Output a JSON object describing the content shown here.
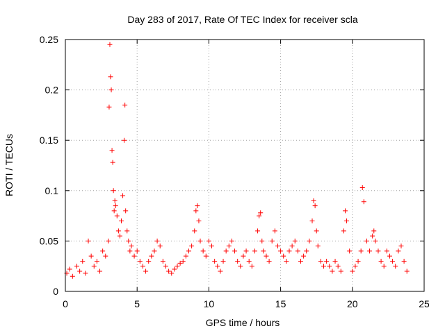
{
  "chart_data": {
    "type": "scatter",
    "title": "Day 283 of 2017, Rate Of TEC Index for receiver scla",
    "xlabel": "GPS time / hours",
    "ylabel": "ROTI / TECUs",
    "xlim": [
      0,
      25
    ],
    "ylim": [
      0,
      0.25
    ],
    "xticks": [
      0,
      5,
      10,
      15,
      20,
      25
    ],
    "xtick_labels": [
      "0",
      "5",
      "10",
      "15",
      "20",
      "25"
    ],
    "yticks": [
      0,
      0.05,
      0.1,
      0.15,
      0.2,
      0.25
    ],
    "ytick_labels": [
      "0",
      "0.05",
      "0.1",
      "0.15",
      "0.2",
      "0.25"
    ],
    "grid": true,
    "marker": "+",
    "color": "#ff0000",
    "series": [
      {
        "name": "ROTI",
        "x": [
          0.1,
          0.3,
          0.5,
          0.8,
          1.0,
          1.2,
          1.4,
          1.6,
          1.8,
          2.0,
          2.2,
          2.4,
          2.6,
          2.8,
          3.0,
          3.05,
          3.1,
          3.15,
          3.2,
          3.25,
          3.3,
          3.35,
          3.4,
          3.45,
          3.5,
          3.6,
          3.7,
          3.8,
          3.9,
          4.0,
          4.1,
          4.15,
          4.2,
          4.3,
          4.4,
          4.5,
          4.6,
          4.8,
          5.0,
          5.2,
          5.4,
          5.6,
          5.8,
          6.0,
          6.2,
          6.4,
          6.6,
          6.8,
          7.0,
          7.2,
          7.4,
          7.6,
          7.8,
          8.0,
          8.2,
          8.4,
          8.6,
          8.8,
          9.0,
          9.1,
          9.2,
          9.3,
          9.4,
          9.6,
          9.8,
          10.0,
          10.2,
          10.4,
          10.6,
          10.8,
          11.0,
          11.2,
          11.4,
          11.6,
          11.8,
          12.0,
          12.2,
          12.4,
          12.6,
          12.8,
          13.0,
          13.2,
          13.4,
          13.5,
          13.6,
          13.7,
          13.8,
          14.0,
          14.2,
          14.4,
          14.6,
          14.8,
          15.0,
          15.2,
          15.4,
          15.6,
          15.8,
          16.0,
          16.2,
          16.4,
          16.6,
          16.8,
          17.0,
          17.2,
          17.3,
          17.4,
          17.5,
          17.6,
          17.8,
          18.0,
          18.2,
          18.4,
          18.6,
          18.8,
          19.0,
          19.2,
          19.4,
          19.5,
          19.6,
          19.8,
          20.0,
          20.2,
          20.4,
          20.6,
          20.7,
          20.8,
          21.0,
          21.2,
          21.4,
          21.5,
          21.6,
          21.8,
          22.0,
          22.2,
          22.4,
          22.6,
          22.8,
          23.0,
          23.2,
          23.4,
          23.6,
          23.8
        ],
        "y": [
          0.018,
          0.022,
          0.015,
          0.025,
          0.02,
          0.03,
          0.018,
          0.05,
          0.035,
          0.025,
          0.03,
          0.02,
          0.04,
          0.035,
          0.05,
          0.183,
          0.245,
          0.213,
          0.2,
          0.14,
          0.128,
          0.1,
          0.08,
          0.09,
          0.085,
          0.075,
          0.06,
          0.055,
          0.07,
          0.095,
          0.15,
          0.185,
          0.08,
          0.06,
          0.05,
          0.04,
          0.045,
          0.035,
          0.04,
          0.03,
          0.025,
          0.02,
          0.03,
          0.035,
          0.04,
          0.05,
          0.045,
          0.03,
          0.025,
          0.02,
          0.018,
          0.022,
          0.025,
          0.028,
          0.03,
          0.035,
          0.04,
          0.045,
          0.06,
          0.08,
          0.085,
          0.07,
          0.05,
          0.04,
          0.035,
          0.05,
          0.045,
          0.03,
          0.025,
          0.02,
          0.03,
          0.04,
          0.045,
          0.05,
          0.04,
          0.03,
          0.025,
          0.035,
          0.04,
          0.03,
          0.025,
          0.04,
          0.06,
          0.075,
          0.078,
          0.05,
          0.04,
          0.035,
          0.03,
          0.05,
          0.06,
          0.045,
          0.04,
          0.035,
          0.03,
          0.04,
          0.045,
          0.05,
          0.04,
          0.03,
          0.035,
          0.04,
          0.05,
          0.07,
          0.09,
          0.085,
          0.06,
          0.045,
          0.03,
          0.025,
          0.03,
          0.025,
          0.02,
          0.03,
          0.025,
          0.02,
          0.06,
          0.08,
          0.07,
          0.04,
          0.02,
          0.025,
          0.03,
          0.04,
          0.103,
          0.089,
          0.05,
          0.04,
          0.055,
          0.06,
          0.05,
          0.04,
          0.03,
          0.025,
          0.04,
          0.035,
          0.03,
          0.025,
          0.04,
          0.045,
          0.03,
          0.02
        ]
      }
    ]
  }
}
